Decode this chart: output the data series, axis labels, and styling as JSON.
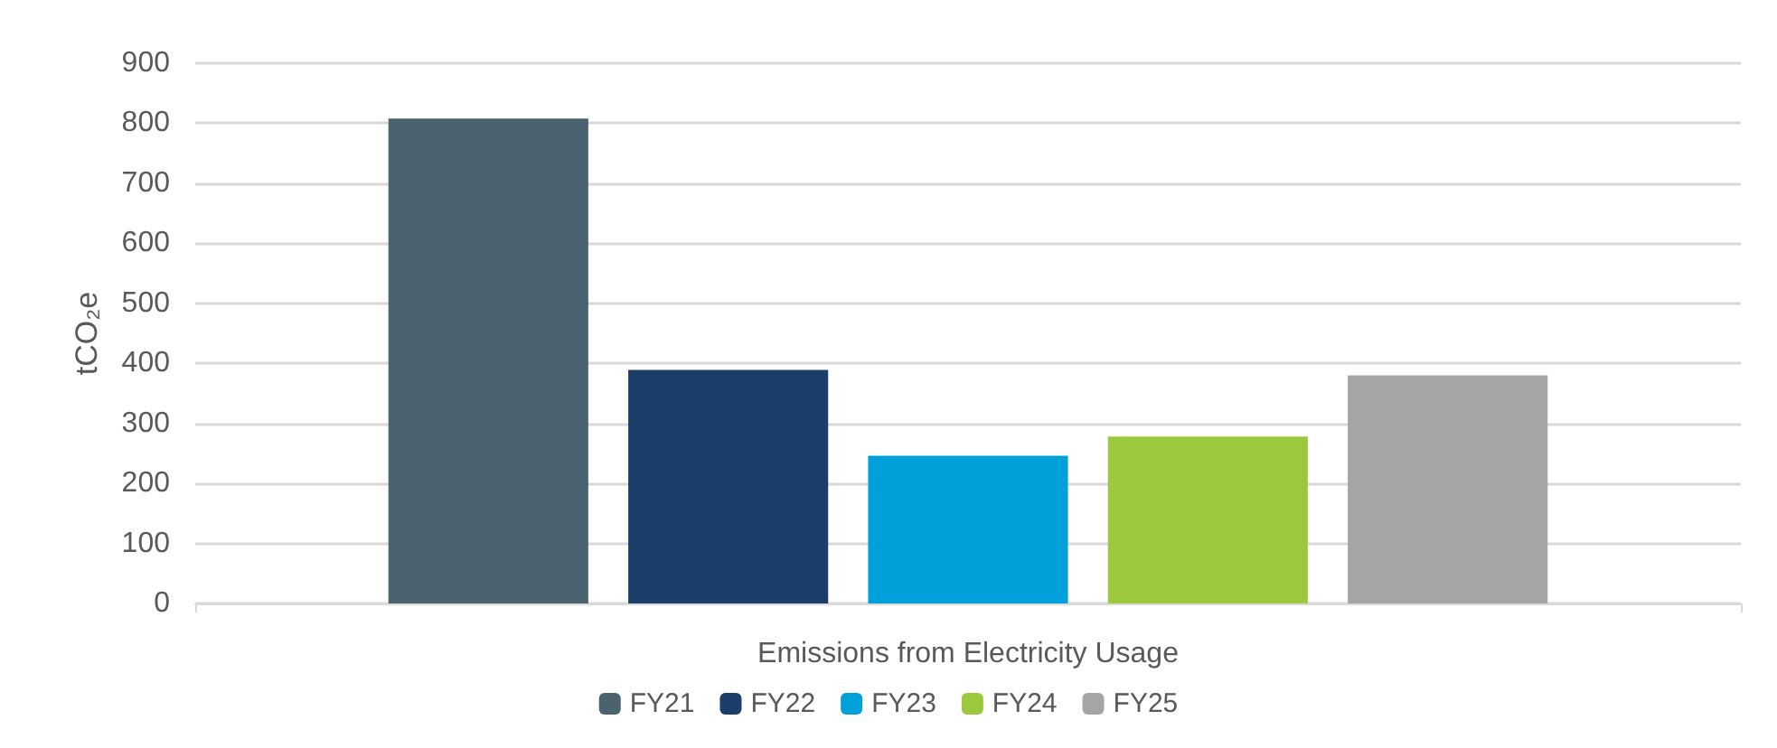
{
  "chart_data": {
    "type": "bar",
    "ylabel": "tCO₂e",
    "categories": [
      "Emissions from Electricity Usage"
    ],
    "series": [
      {
        "name": "FY21",
        "color": "#4a636e",
        "values": [
          808
        ]
      },
      {
        "name": "FY22",
        "color": "#1b3d6a",
        "values": [
          389
        ]
      },
      {
        "name": "FY23",
        "color": "#00a0db",
        "values": [
          246
        ]
      },
      {
        "name": "FY24",
        "color": "#9bc83d",
        "values": [
          278
        ]
      },
      {
        "name": "FY25",
        "color": "#a5a5a5",
        "values": [
          380
        ]
      }
    ],
    "ylim": [
      0,
      900
    ],
    "yticks": [
      0,
      100,
      200,
      300,
      400,
      500,
      600,
      700,
      800,
      900
    ],
    "grid": "y",
    "legend": "bottom"
  }
}
